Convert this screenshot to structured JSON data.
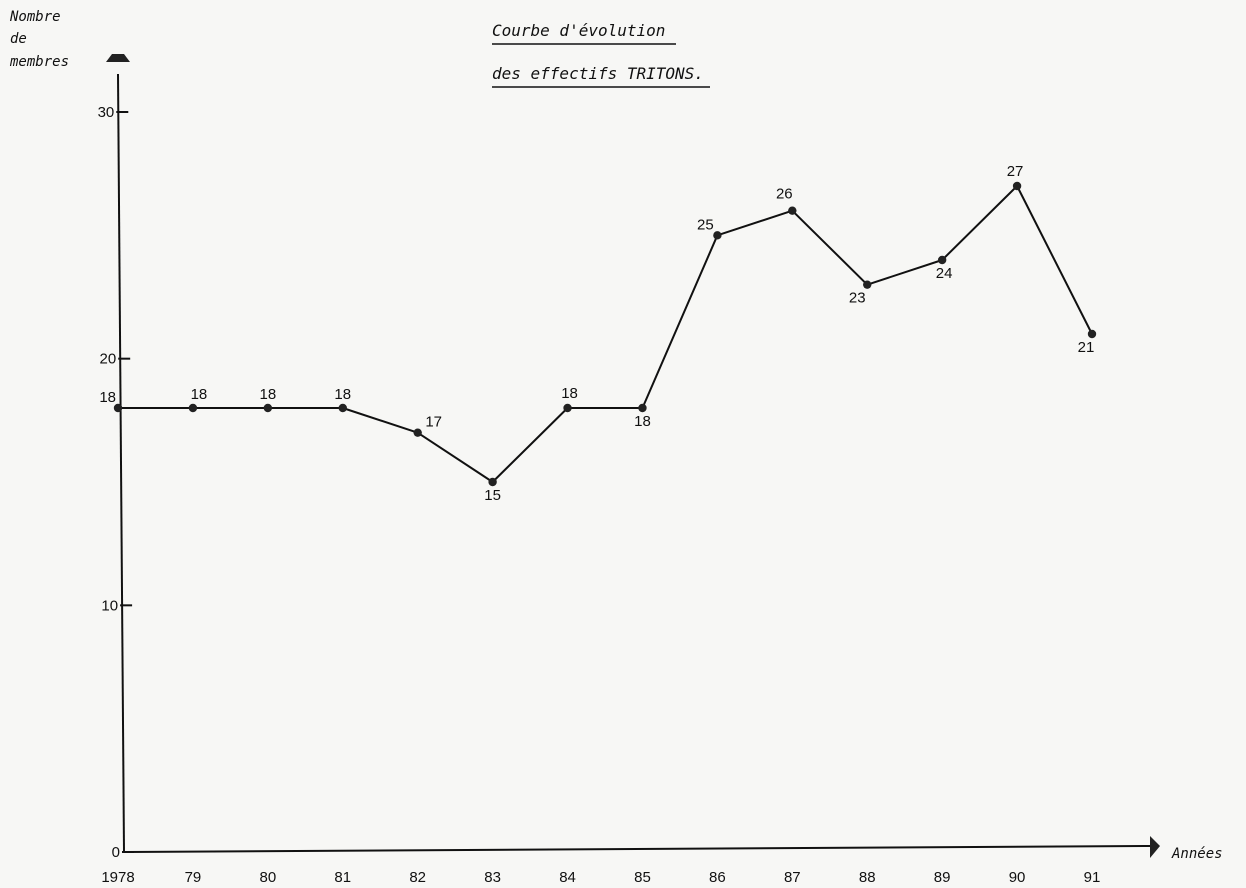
{
  "chart_data": {
    "type": "line",
    "title": [
      "Courbe d'évolution",
      "des effectifs TRITONS."
    ],
    "ylabel": [
      "Nombre",
      "de",
      "membres"
    ],
    "xlabel": "Années",
    "ylim": [
      0,
      30
    ],
    "yticks": [
      "0",
      "10",
      "20",
      "30"
    ],
    "x_tick_labels": [
      "1978",
      "79",
      "80",
      "81",
      "82",
      "83",
      "84",
      "85",
      "86",
      "87",
      "88",
      "89",
      "90",
      "91"
    ],
    "series": [
      {
        "x": [
          1978,
          1979,
          1980,
          1981,
          1982,
          1983,
          1984,
          1985,
          1986,
          1987,
          1988,
          1989,
          1990,
          1991
        ],
        "values": [
          18,
          18,
          18,
          18,
          17,
          15,
          18,
          18,
          25,
          26,
          23,
          24,
          27,
          21
        ]
      }
    ],
    "data_labels": [
      "18",
      "18",
      "18",
      "18",
      "17",
      "15",
      "18",
      "18",
      "25",
      "26",
      "23",
      "24",
      "27",
      "21"
    ],
    "legend": "none",
    "grid": false,
    "colors": {
      "line": "#111111",
      "marker": "#222222",
      "axis": "#111111",
      "background": "#f7f7f5"
    }
  }
}
